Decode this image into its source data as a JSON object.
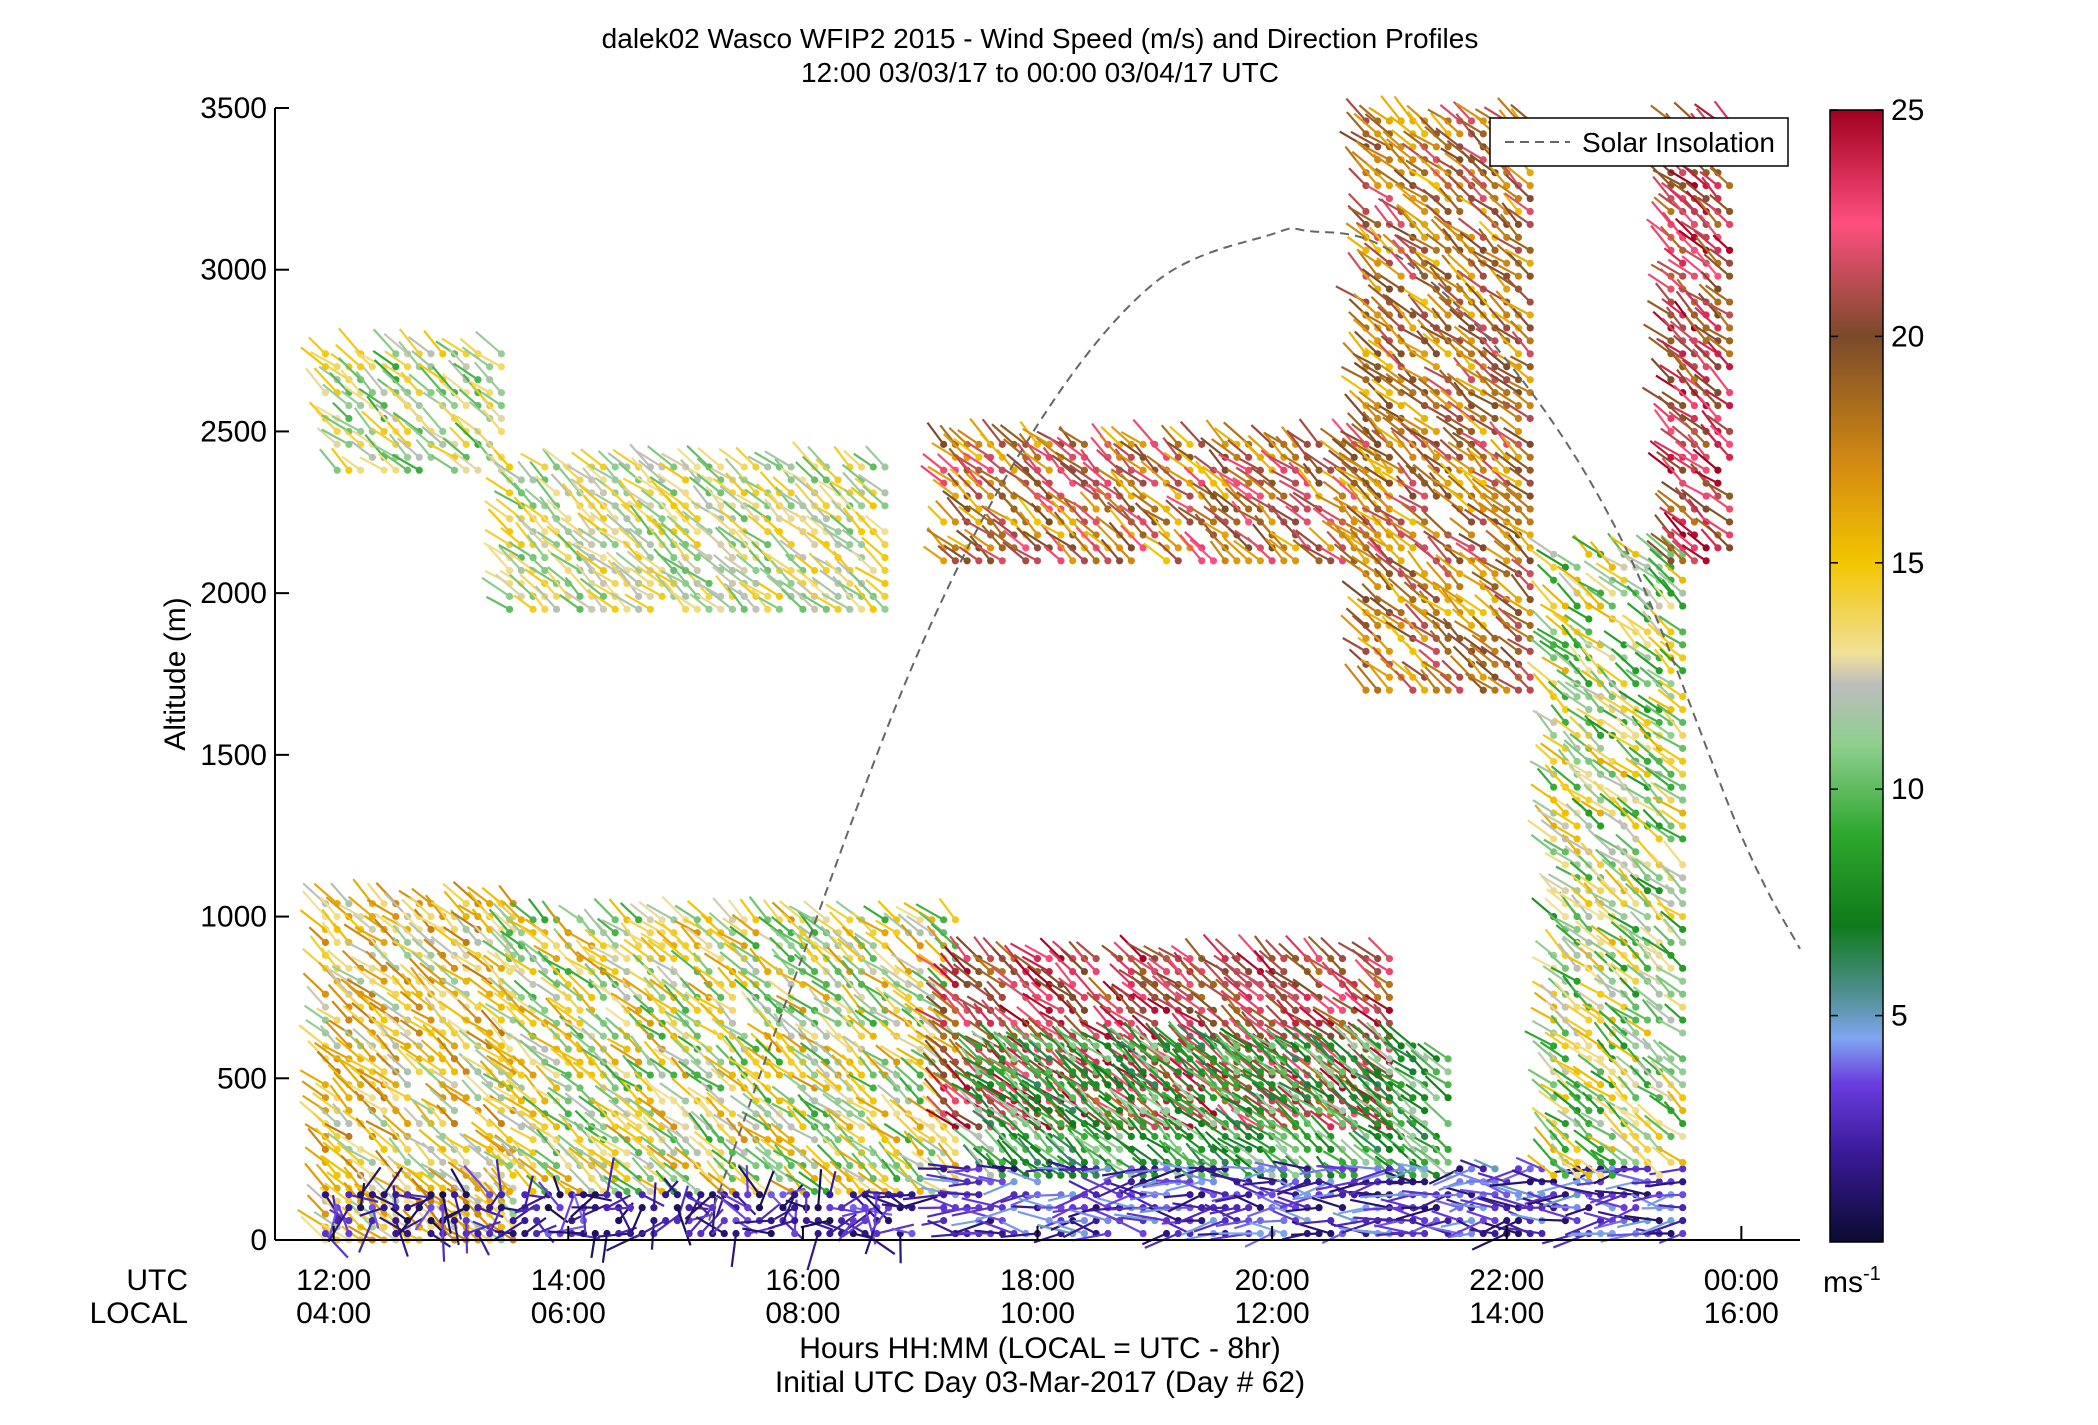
{
  "chart_data": {
    "type": "wind-profile",
    "title": "dalek02 Wasco WFIP2 2015 - Wind Speed (m/s) and Direction Profiles",
    "subtitle": "12:00 03/03/17 to 00:00 03/04/17  UTC",
    "ylabel": "Altitude (m)",
    "xlabel": "Hours HH:MM  (LOCAL = UTC - 8hr)",
    "xlabel2": "Initial UTC Day 03-Mar-2017 (Day # 62)",
    "utc_label": "UTC",
    "local_label": "LOCAL",
    "colorbar_unit": "ms-1",
    "colorbar_unit_base": "ms",
    "colorbar_unit_exp": "-1",
    "xlim_hours": [
      11.5,
      24.5
    ],
    "ylim": [
      0,
      3500
    ],
    "yticks": [
      0,
      500,
      1000,
      1500,
      2000,
      2500,
      3000,
      3500
    ],
    "ytick_labels": [
      "0",
      "500",
      "1000",
      "1500",
      "2000",
      "2500",
      "3000",
      "3500"
    ],
    "xticks_hours": [
      12,
      14,
      16,
      18,
      20,
      22,
      24
    ],
    "xtick_utc": [
      "12:00",
      "14:00",
      "16:00",
      "18:00",
      "20:00",
      "22:00",
      "00:00"
    ],
    "xtick_local": [
      "04:00",
      "06:00",
      "08:00",
      "10:00",
      "12:00",
      "14:00",
      "16:00"
    ],
    "colorbar_range": [
      0,
      25
    ],
    "colorbar_ticks": [
      5,
      10,
      15,
      20,
      25
    ],
    "colorbar_tick_labels": [
      "5",
      "10",
      "15",
      "20",
      "25"
    ],
    "legend": {
      "label": "Solar Insolation",
      "placement": "top-right",
      "style": "dashed",
      "color": "#666666"
    },
    "solar_insolation_curve": [
      [
        15.2,
        60
      ],
      [
        16,
        880
      ],
      [
        17,
        1830
      ],
      [
        18,
        2520
      ],
      [
        19,
        2960
      ],
      [
        20,
        3110
      ],
      [
        20.3,
        3120
      ],
      [
        21,
        3060
      ],
      [
        22,
        2720
      ],
      [
        23,
        2150
      ],
      [
        24,
        1250
      ],
      [
        24.5,
        900
      ]
    ],
    "colormap": [
      [
        0,
        "#0b0b30"
      ],
      [
        2,
        "#3a1a9a"
      ],
      [
        3.5,
        "#6a3de0"
      ],
      [
        4.5,
        "#7fa6f0"
      ],
      [
        5.5,
        "#4f8f8f"
      ],
      [
        7,
        "#0f7a1a"
      ],
      [
        9,
        "#2ea82e"
      ],
      [
        11,
        "#8fcf8f"
      ],
      [
        12.3,
        "#bdbdbd"
      ],
      [
        13,
        "#f1e098"
      ],
      [
        15,
        "#f2c600"
      ],
      [
        17,
        "#d88f10"
      ],
      [
        20,
        "#7a4a2a"
      ],
      [
        22.5,
        "#ff4f7f"
      ],
      [
        25,
        "#a0001f"
      ]
    ],
    "barb_direction_note": "direction from the southwest at upper levels, variable near surface",
    "series": [
      {
        "time_range_hours": [
          11.93,
          13.55
        ],
        "altitude_range": [
          0,
          1050
        ],
        "speed_range": [
          11,
          18
        ],
        "direction": "SW"
      },
      {
        "time_range_hours": [
          11.93,
          13.45
        ],
        "altitude_range": [
          2380,
          2760
        ],
        "speed_range": [
          9,
          15
        ],
        "direction": "SW"
      },
      {
        "time_range_hours": [
          13.5,
          16.7
        ],
        "altitude_range": [
          1950,
          2420
        ],
        "speed_range": [
          10,
          15
        ],
        "direction": "SW"
      },
      {
        "time_range_hours": [
          13.5,
          17.3
        ],
        "altitude_range": [
          150,
          1000
        ],
        "speed_range": [
          9,
          17
        ],
        "direction": "SW"
      },
      {
        "time_range_hours": [
          11.93,
          17.0
        ],
        "altitude_range": [
          20,
          160
        ],
        "speed_range": [
          0.5,
          4
        ],
        "direction": "variable"
      },
      {
        "time_range_hours": [
          17.2,
          21.0
        ],
        "altitude_range": [
          2100,
          2460
        ],
        "speed_range": [
          15,
          23
        ],
        "direction": "SW"
      },
      {
        "time_range_hours": [
          17.2,
          21.0
        ],
        "altitude_range": [
          350,
          870
        ],
        "speed_range": [
          18,
          25
        ],
        "direction": "SW"
      },
      {
        "time_range_hours": [
          17.5,
          21.5
        ],
        "altitude_range": [
          200,
          600
        ],
        "speed_range": [
          6,
          12
        ],
        "direction": "SW"
      },
      {
        "time_range_hours": [
          17.2,
          23.5
        ],
        "altitude_range": [
          20,
          250
        ],
        "speed_range": [
          1,
          5
        ],
        "direction": "NW"
      },
      {
        "time_range_hours": [
          20.8,
          22.2
        ],
        "altitude_range": [
          1700,
          3490
        ],
        "speed_range": [
          15,
          22
        ],
        "direction": "SW"
      },
      {
        "time_range_hours": [
          22.4,
          23.5
        ],
        "altitude_range": [
          200,
          2150
        ],
        "speed_range": [
          8,
          16
        ],
        "direction": "SW"
      },
      {
        "time_range_hours": [
          23.4,
          23.9
        ],
        "altitude_range": [
          2100,
          3490
        ],
        "speed_range": [
          18,
          25
        ],
        "direction": "SW"
      }
    ]
  }
}
